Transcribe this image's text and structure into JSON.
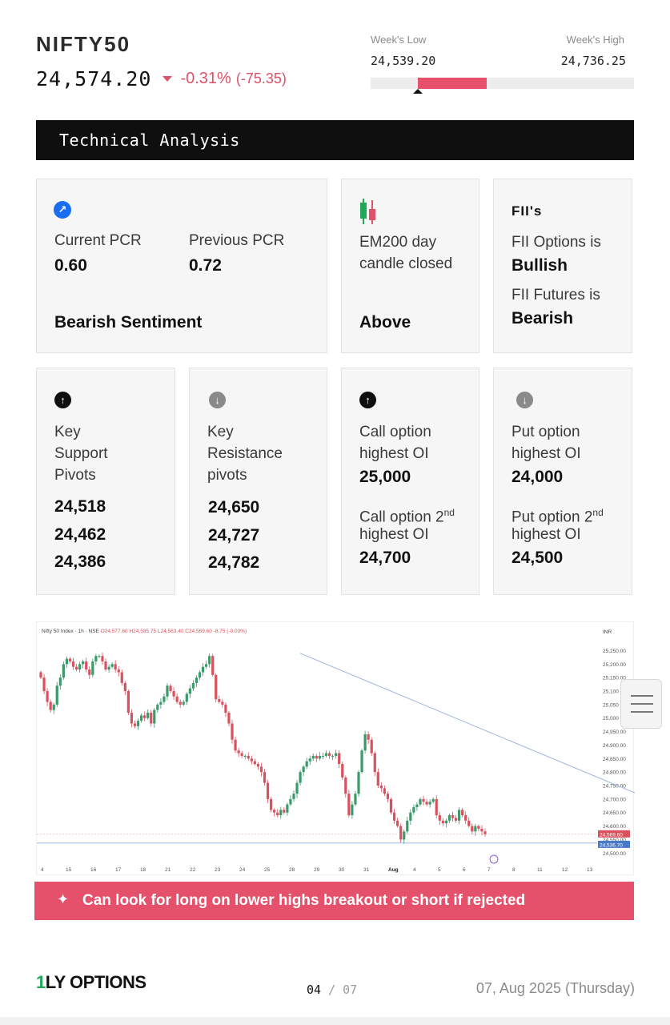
{
  "header": {
    "symbol": "NIFTY50",
    "price": "24,574.20",
    "change_pct": "-0.31%",
    "change_pts": "(-75.35)"
  },
  "week_range": {
    "low_label": "Week's Low",
    "low_value": "24,539.20",
    "high_label": "Week's High",
    "high_value": "24,736.25",
    "current_fraction": 0.18
  },
  "section_title": "Technical Analysis",
  "pcr": {
    "current_label": "Current PCR",
    "current_value": "0.60",
    "previous_label": "Previous PCR",
    "previous_value": "0.72",
    "sentiment": "Bearish Sentiment"
  },
  "ema": {
    "line1": "EM200 day",
    "line2": "candle closed",
    "status": "Above"
  },
  "fii": {
    "title": "FII's",
    "options_label": "FII Options is",
    "options_value": "Bullish",
    "futures_label": "FII Futures is",
    "futures_value": "Bearish"
  },
  "support": {
    "l1": "Key",
    "l2": "Support",
    "l3": "Pivots",
    "values": [
      "24,518",
      "24,462",
      "24,386"
    ]
  },
  "resistance": {
    "l1": "Key",
    "l2": "Resistance",
    "l3": "pivots",
    "values": [
      "24,650",
      "24,727",
      "24,782"
    ]
  },
  "call_oi": {
    "l1": "Call option",
    "l2": "highest OI",
    "value": "25,000",
    "l3": "Call option 2",
    "l3_sup": "nd",
    "l4": "highest OI",
    "value2": "24,700"
  },
  "put_oi": {
    "l1": "Put option",
    "l2": "highest OI",
    "value": "24,000",
    "l3": "Put option 2",
    "l3_sup": "nd",
    "l4": "highest OI",
    "value2": "24,500"
  },
  "chart_data": {
    "type": "candlestick",
    "header_text": "Nifty 50 Index · 1h · NSE",
    "ohlc_text": {
      "o": "O24,577.60",
      "h": "H24,585.75",
      "l": "L24,563.40",
      "c": "C24,569.60",
      "chg": "-8.75 (-0.03%)"
    },
    "currency": "INR",
    "ylim": [
      24480,
      25290
    ],
    "y_ticks": [
      25250,
      25200,
      25150,
      25100,
      25050,
      25000,
      24950,
      24900,
      24850,
      24800,
      24750,
      24700,
      24650,
      24600,
      24550,
      24500
    ],
    "y_tick_labels": [
      "25,250.00",
      "25,200.00",
      "25,150.00",
      "25,100",
      "25,050",
      "25,000",
      "24,950.00",
      "24,900.00",
      "24,850.00",
      "24,800.00",
      "24,750.00",
      "24,700.00",
      "24,650.00",
      "24,600.00",
      "24,550.00",
      "24,500.00"
    ],
    "x_labels": [
      "4",
      "15",
      "16",
      "17",
      "18",
      "21",
      "22",
      "23",
      "24",
      "25",
      "28",
      "29",
      "30",
      "31",
      "Aug",
      "4",
      "5",
      "6",
      "7",
      "8",
      "11",
      "12",
      "13"
    ],
    "last_price": 24569.6,
    "last_price_label": "24,569.60",
    "support_line": 24536.7,
    "support_line_label": "24,536.70",
    "trendline": [
      {
        "i": 80,
        "price": 25240
      },
      {
        "i": 186,
        "price": 24700
      }
    ],
    "closes": [
      25150,
      25100,
      25060,
      25030,
      25050,
      25120,
      25150,
      25200,
      25220,
      25210,
      25190,
      25180,
      25200,
      25210,
      25180,
      25160,
      25210,
      25230,
      25230,
      25210,
      25180,
      25190,
      25200,
      25180,
      25170,
      25130,
      25100,
      25020,
      24980,
      24970,
      24990,
      25010,
      25000,
      25020,
      24980,
      25030,
      25050,
      25060,
      25080,
      25120,
      25100,
      25080,
      25060,
      25050,
      25060,
      25090,
      25110,
      25130,
      25150,
      25170,
      25190,
      25200,
      25230,
      25160,
      25070,
      25060,
      25050,
      25020,
      24980,
      24920,
      24880,
      24870,
      24860,
      24860,
      24850,
      24840,
      24830,
      24820,
      24800,
      24760,
      24700,
      24660,
      24650,
      24640,
      24660,
      24650,
      24680,
      24700,
      24720,
      24760,
      24800,
      24820,
      24840,
      24850,
      24860,
      24850,
      24860,
      24860,
      24870,
      24860,
      24860,
      24870,
      24830,
      24780,
      24720,
      24640,
      24680,
      24720,
      24800,
      24880,
      24940,
      24920,
      24870,
      24800,
      24750,
      24740,
      24720,
      24700,
      24650,
      24620,
      24600,
      24550,
      24580,
      24620,
      24650,
      24670,
      24680,
      24700,
      24690,
      24680,
      24690,
      24700,
      24640,
      24620,
      24610,
      24620,
      24640,
      24630,
      24620,
      24660,
      24640,
      24620,
      24600,
      24580,
      24600,
      24590,
      24580,
      24570
    ]
  },
  "banner": {
    "icon": "sparkle-icon",
    "text": "Can look for long on lower highs breakout or short if rejected"
  },
  "footer": {
    "logo_one": "1",
    "logo_text": "LY OPTIONS",
    "page_current": "04",
    "page_sep": "/",
    "page_total": "07",
    "date": "07, Aug 2025 (Thursday)"
  },
  "colors": {
    "up": "#3a9a6a",
    "down": "#d9505e",
    "accent_red": "#e5506a",
    "bullish": "#22a65a",
    "trendline": "#9fb5dd"
  }
}
